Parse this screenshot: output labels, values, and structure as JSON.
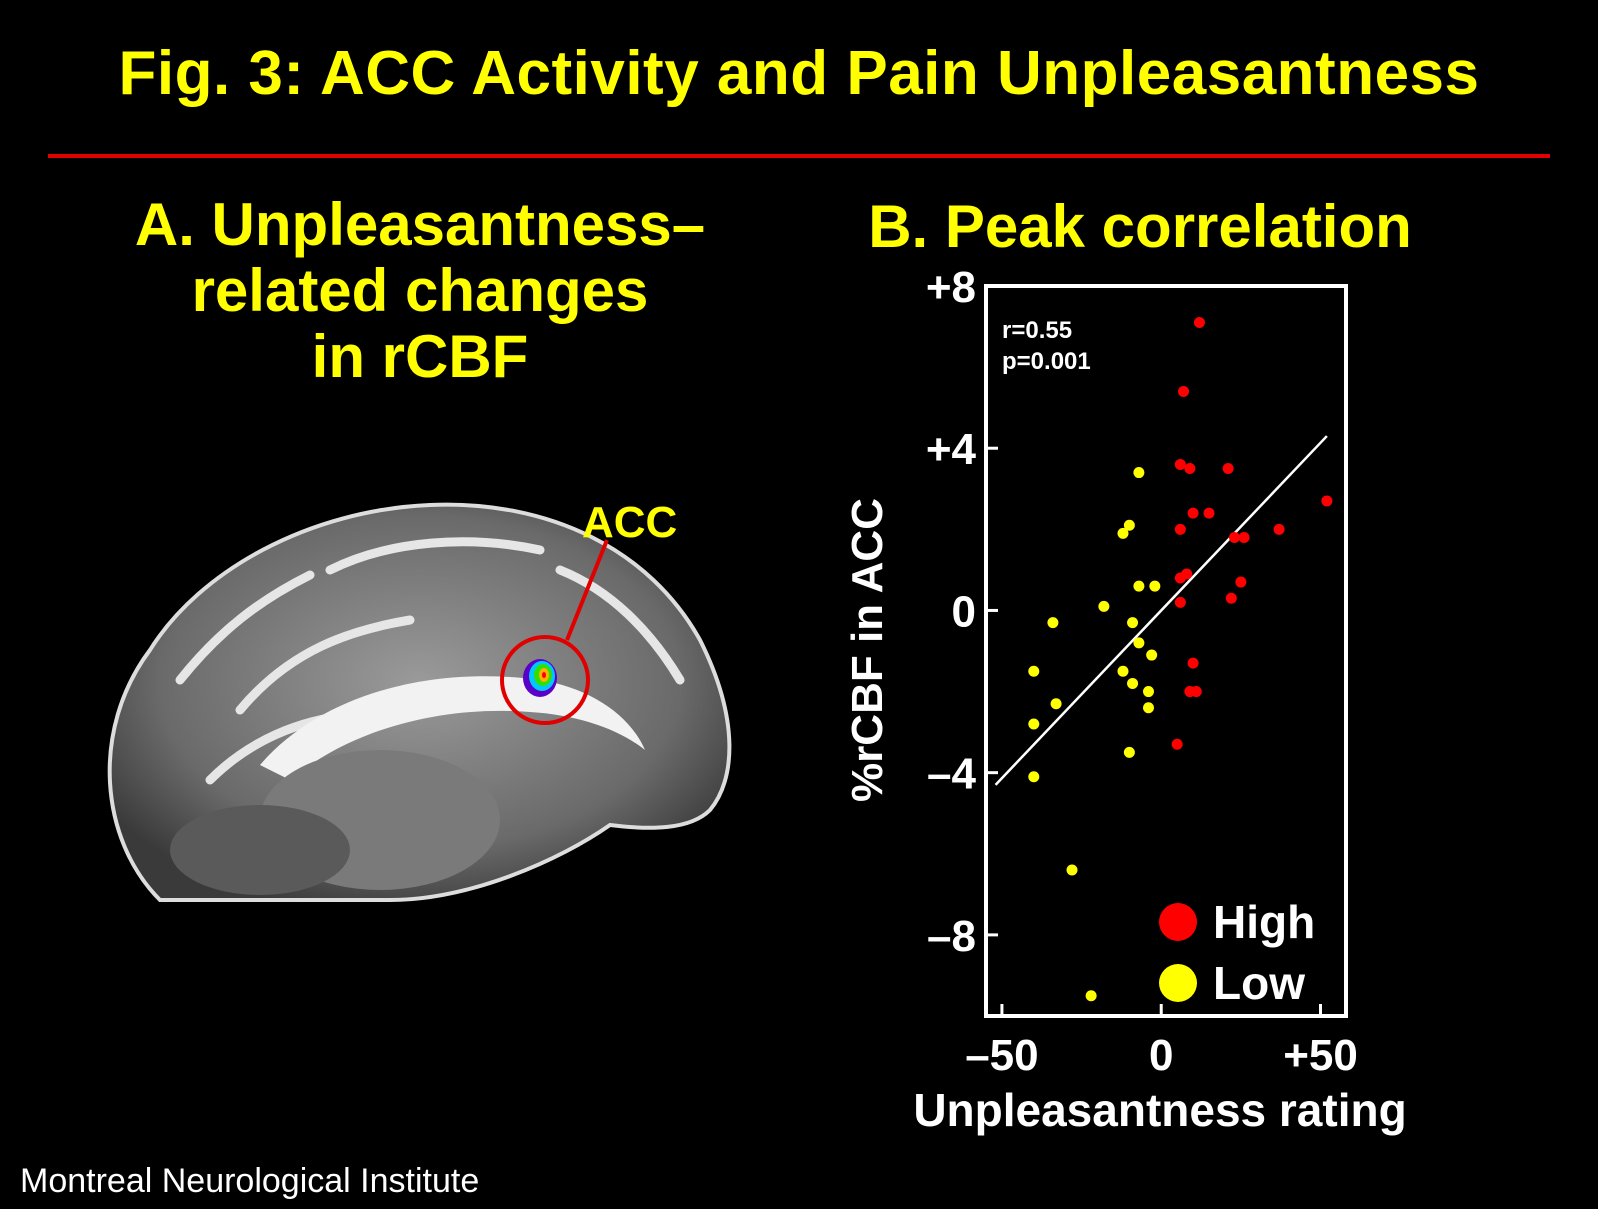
{
  "title": "Fig. 3: ACC Activity and Pain Unpleasantness",
  "panel_a": {
    "title_lines": [
      "A. Unpleasantness–",
      "related changes",
      "in rCBF"
    ],
    "roi_label": "ACC"
  },
  "panel_b": {
    "title": "B. Peak correlation"
  },
  "footer": "Montreal Neurological Institute",
  "colors": {
    "title": "#ffff00",
    "rule": "#e00000",
    "high": "#ff0000",
    "low": "#ffff00",
    "fit": "#ffffff"
  },
  "chart_data": {
    "type": "scatter",
    "title": "B. Peak correlation",
    "xlabel": "Unpleasantness rating",
    "ylabel": "%rCBF in ACC",
    "xlim": [
      -55,
      58
    ],
    "ylim": [
      -10,
      8
    ],
    "xticks": [
      {
        "v": -50,
        "label": "–50"
      },
      {
        "v": 0,
        "label": "0"
      },
      {
        "v": 50,
        "label": "+50"
      }
    ],
    "yticks": [
      {
        "v": 8,
        "label": "+8"
      },
      {
        "v": 4,
        "label": "+4"
      },
      {
        "v": 0,
        "label": "0"
      },
      {
        "v": -4,
        "label": "–4"
      },
      {
        "v": -8,
        "label": "–8"
      }
    ],
    "annotations": [
      "r=0.55",
      "p=0.001"
    ],
    "legend_position": "bottom-right",
    "fit_line": {
      "x": [
        -52,
        52
      ],
      "y": [
        -4.3,
        4.3
      ]
    },
    "series": [
      {
        "name": "High",
        "color": "#ff0000",
        "points": [
          [
            12,
            7.1
          ],
          [
            7,
            5.4
          ],
          [
            6,
            3.6
          ],
          [
            9,
            3.5
          ],
          [
            21,
            3.5
          ],
          [
            10,
            2.4
          ],
          [
            15,
            2.4
          ],
          [
            52,
            2.7
          ],
          [
            6,
            2.0
          ],
          [
            23,
            1.8
          ],
          [
            26,
            1.8
          ],
          [
            37,
            2.0
          ],
          [
            8,
            0.9
          ],
          [
            6,
            0.8
          ],
          [
            25,
            0.7
          ],
          [
            6,
            0.2
          ],
          [
            22,
            0.3
          ],
          [
            10,
            -1.3
          ],
          [
            11,
            -2.0
          ],
          [
            9,
            -2.0
          ],
          [
            5,
            -3.3
          ]
        ]
      },
      {
        "name": "Low",
        "color": "#ffff00",
        "points": [
          [
            -7,
            3.4
          ],
          [
            -10,
            2.1
          ],
          [
            -12,
            1.9
          ],
          [
            -7,
            0.6
          ],
          [
            -2,
            0.6
          ],
          [
            -18,
            0.1
          ],
          [
            -9,
            -0.3
          ],
          [
            -34,
            -0.3
          ],
          [
            -7,
            -0.8
          ],
          [
            -3,
            -1.1
          ],
          [
            -40,
            -1.5
          ],
          [
            -12,
            -1.5
          ],
          [
            -9,
            -1.8
          ],
          [
            -4,
            -2.0
          ],
          [
            -33,
            -2.3
          ],
          [
            -4,
            -2.4
          ],
          [
            -40,
            -2.8
          ],
          [
            -10,
            -3.5
          ],
          [
            -40,
            -4.1
          ],
          [
            -28,
            -6.4
          ],
          [
            -22,
            -9.5
          ]
        ]
      }
    ]
  }
}
